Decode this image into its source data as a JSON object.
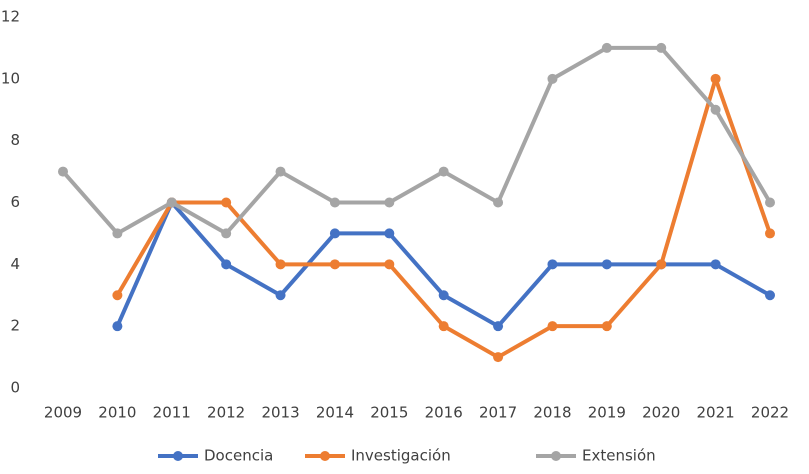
{
  "chart_data": {
    "type": "line",
    "categories": [
      "2009",
      "2010",
      "2011",
      "2012",
      "2013",
      "2014",
      "2015",
      "2016",
      "2017",
      "2018",
      "2019",
      "2020",
      "2021",
      "2022"
    ],
    "series": [
      {
        "name": "Docencia",
        "color": "#4472c4",
        "values": [
          null,
          2,
          6,
          4,
          3,
          5,
          5,
          3,
          2,
          4,
          4,
          4,
          4,
          3
        ]
      },
      {
        "name": "Investigación",
        "color": "#ed7d31",
        "values": [
          null,
          3,
          6,
          6,
          4,
          4,
          4,
          2,
          1,
          2,
          2,
          4,
          10,
          5
        ]
      },
      {
        "name": "Extensión",
        "color": "#a5a5a5",
        "values": [
          7,
          5,
          6,
          5,
          7,
          6,
          6,
          7,
          6,
          10,
          11,
          11,
          9,
          6
        ]
      }
    ],
    "ylim": [
      0,
      12
    ],
    "yticks": [
      0,
      2,
      4,
      6,
      8,
      10,
      12
    ],
    "grid": false,
    "legend": "bottom"
  }
}
